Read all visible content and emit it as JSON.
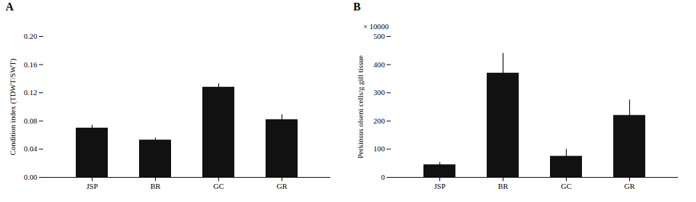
{
  "chart_data": [
    {
      "type": "bar",
      "title": "A",
      "categories": [
        "JSP",
        "BR",
        "GC",
        "GR"
      ],
      "values": [
        0.07,
        0.053,
        0.128,
        0.082
      ],
      "errors": [
        0.004,
        0.003,
        0.005,
        0.007
      ],
      "ylabel": "Condition index (TDWT/SWT)",
      "ylim": [
        0.0,
        0.2
      ],
      "yticks": [
        {
          "value": 0.0,
          "label": "0.00"
        },
        {
          "value": 0.04,
          "label": "0.04"
        },
        {
          "value": 0.08,
          "label": "0.08"
        },
        {
          "value": 0.12,
          "label": "0.12"
        },
        {
          "value": 0.16,
          "label": "0.16"
        },
        {
          "value": 0.2,
          "label": "0.20"
        }
      ],
      "color": "#111111",
      "grid": false
    },
    {
      "type": "bar",
      "title": "B",
      "categories": [
        "JSP",
        "BR",
        "GC",
        "GR"
      ],
      "values": [
        45,
        370,
        75,
        220
      ],
      "errors": [
        8,
        70,
        25,
        55
      ],
      "ylabel": "Perkinsus olseni cells/g gill tissue",
      "annotations": [
        "× 10000"
      ],
      "ylim": [
        0,
        500
      ],
      "yticks": [
        0,
        100,
        200,
        300,
        400,
        500
      ],
      "color": "#111111",
      "grid": false
    }
  ]
}
